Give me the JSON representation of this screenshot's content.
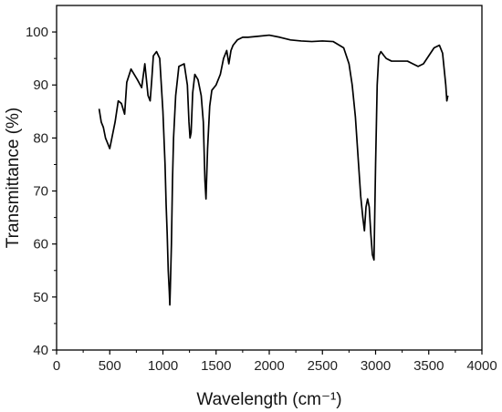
{
  "chart_data": {
    "type": "line",
    "title": "",
    "xlabel": "Wavelength (cm⁻¹)",
    "ylabel": "Transmittance (%)",
    "xlim": [
      0,
      4000
    ],
    "ylim": [
      40,
      105
    ],
    "xticks": [
      0,
      500,
      1000,
      1500,
      2000,
      2500,
      3000,
      3500,
      4000
    ],
    "yticks": [
      40,
      50,
      60,
      70,
      80,
      90,
      100
    ],
    "grid": false,
    "legend": "none",
    "line_color": "#000000",
    "series": [
      {
        "x": [
          400,
          420,
          440,
          460,
          480,
          500,
          520,
          550,
          580,
          610,
          640,
          660,
          700,
          760,
          800,
          830,
          860,
          880,
          895,
          910,
          940,
          970,
          1000,
          1020,
          1030,
          1040,
          1050,
          1060,
          1065,
          1070,
          1080,
          1090,
          1100,
          1120,
          1150,
          1200,
          1230,
          1245,
          1255,
          1265,
          1280,
          1300,
          1330,
          1360,
          1380,
          1395,
          1405,
          1420,
          1440,
          1460,
          1500,
          1540,
          1570,
          1600,
          1620,
          1640,
          1660,
          1700,
          1750,
          1800,
          1900,
          2000,
          2100,
          2200,
          2300,
          2400,
          2500,
          2600,
          2700,
          2750,
          2780,
          2810,
          2840,
          2860,
          2880,
          2895,
          2910,
          2925,
          2940,
          2955,
          2970,
          2985,
          3000,
          3015,
          3030,
          3050,
          3080,
          3100,
          3150,
          3200,
          3300,
          3350,
          3400,
          3450,
          3500,
          3550,
          3600,
          3630,
          3660,
          3670,
          3680
        ],
        "y": [
          85.5,
          83,
          82,
          80,
          79,
          78,
          80,
          83,
          87,
          86.5,
          84.5,
          90.5,
          93,
          91,
          89.5,
          94,
          88,
          87,
          91,
          95.5,
          96.3,
          95,
          85,
          75,
          67.5,
          62,
          55,
          51,
          48.5,
          52,
          60,
          72,
          80,
          88,
          93.5,
          94,
          90,
          83,
          80,
          81,
          88.5,
          92,
          91,
          88,
          83,
          72,
          68.5,
          78,
          86,
          89,
          90,
          92,
          95,
          96.5,
          94,
          96.5,
          97.5,
          98.5,
          99,
          99,
          99.2,
          99.4,
          99,
          98.5,
          98.3,
          98.2,
          98.3,
          98.2,
          97,
          94,
          90,
          84,
          75,
          69,
          65,
          62.5,
          67,
          68.5,
          67,
          62,
          58,
          57,
          75,
          90,
          95.5,
          96.3,
          95.5,
          95,
          94.5,
          94.5,
          94.5,
          94,
          93.5,
          94,
          95.5,
          97,
          97.5,
          96,
          90,
          87,
          88
        ]
      }
    ]
  }
}
